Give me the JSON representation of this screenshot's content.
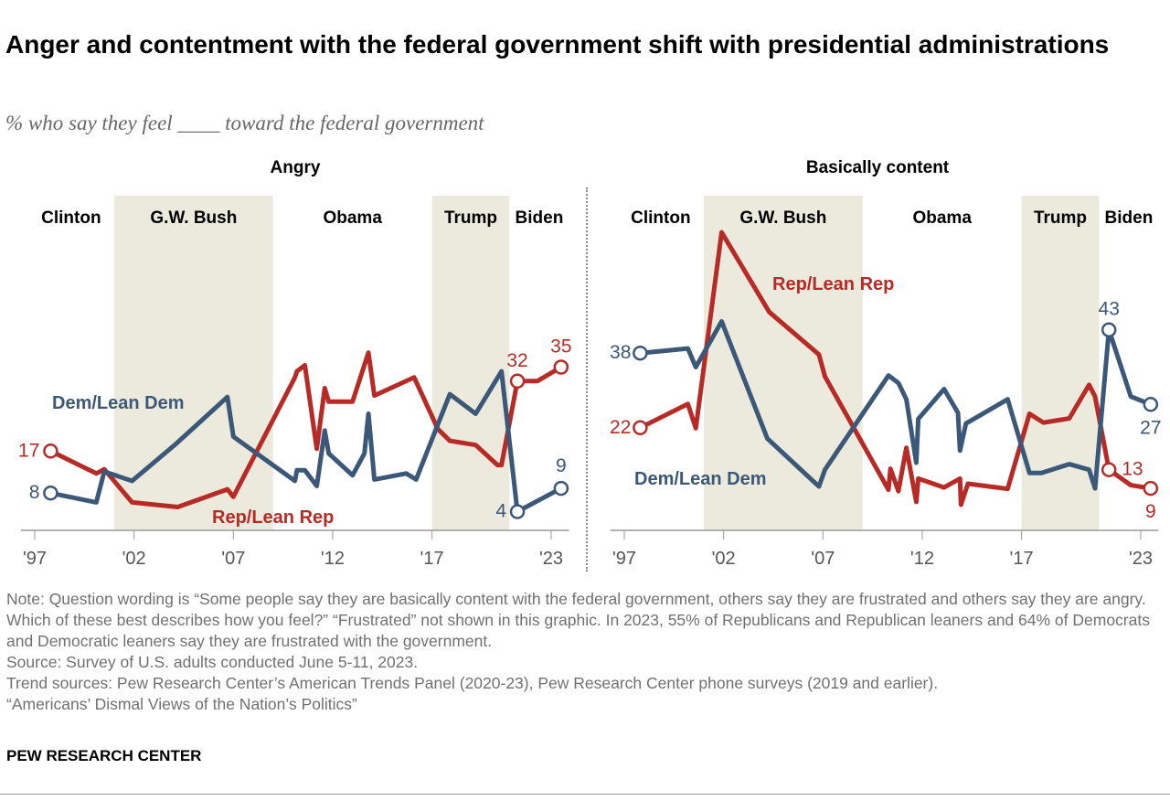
{
  "title": "Anger and contentment with the federal government shift with presidential administrations",
  "subtitle": "% who say they feel ____ toward the federal government",
  "colors": {
    "rep": "#b82a25",
    "dem": "#3c5878",
    "band": "#ebeadd",
    "axis": "#999999"
  },
  "chart_data": [
    {
      "type": "line",
      "title": "Angry",
      "x_ticks": [
        "'97",
        "'02",
        "'07",
        "'12",
        "'17",
        "'23"
      ],
      "x_tick_years": [
        1997,
        2002,
        2007,
        2012,
        2017,
        2023
      ],
      "xlim": [
        1996.3,
        2023.9
      ],
      "ylim": [
        0,
        40
      ],
      "grid": false,
      "eras": [
        {
          "label": "Clinton",
          "start": 1996.3,
          "end": 2001,
          "shaded": false
        },
        {
          "label": "G.W. Bush",
          "start": 2001,
          "end": 2009,
          "shaded": true
        },
        {
          "label": "Obama",
          "start": 2009,
          "end": 2017,
          "shaded": false
        },
        {
          "label": "Trump",
          "start": 2017,
          "end": 2020.9,
          "shaded": true
        },
        {
          "label": "Biden",
          "start": 2020.9,
          "end": 2023.9,
          "shaded": false
        }
      ],
      "series": [
        {
          "name": "Rep/Lean Rep",
          "color": "#b82a25",
          "x": [
            1997.8,
            2000.1,
            2000.5,
            2001.9,
            2004.2,
            2006.7,
            2007.0,
            2010.1,
            2010.2,
            2010.6,
            2011.2,
            2011.6,
            2011.8,
            2013.0,
            2013.8,
            2014.1,
            2016.1,
            2017.3,
            2017.9,
            2019.2,
            2020.3,
            2020.5,
            2021.3,
            2022.3,
            2023.5
          ],
          "y": [
            17,
            12.2,
            13.1,
            6,
            5,
            8.8,
            7.2,
            32.8,
            34.1,
            35.4,
            17.5,
            30.5,
            27.6,
            27.6,
            38.1,
            28.9,
            32.8,
            21.7,
            19.2,
            18.3,
            14,
            14,
            32,
            32,
            35
          ],
          "labels": [
            {
              "index": 0,
              "text": "17"
            },
            {
              "index": 22,
              "text": "32"
            },
            {
              "index": 24,
              "text": "35"
            }
          ]
        },
        {
          "name": "Dem/Lean Dem",
          "color": "#3c5878",
          "x": [
            1997.8,
            2000.1,
            2000.5,
            2001.9,
            2004.1,
            2006.7,
            2007.0,
            2010.1,
            2010.2,
            2010.6,
            2011.2,
            2011.6,
            2011.8,
            2013.0,
            2013.6,
            2013.8,
            2014.1,
            2015.7,
            2016.2,
            2017.9,
            2019.2,
            2020.5,
            2021.3,
            2023.5
          ],
          "y": [
            8,
            6,
            12.6,
            10.6,
            18.5,
            28.6,
            20.1,
            10.6,
            12.9,
            12.9,
            9.5,
            21.4,
            16.5,
            11.8,
            16.5,
            25,
            10.9,
            12.2,
            10.9,
            29.2,
            25,
            34.1,
            4,
            9
          ],
          "labels": [
            {
              "index": 0,
              "text": "8"
            },
            {
              "index": 22,
              "text": "4"
            },
            {
              "index": 23,
              "text": "9"
            }
          ]
        }
      ]
    },
    {
      "type": "line",
      "title": "Basically content",
      "x_ticks": [
        "'97",
        "'02",
        "'07",
        "'12",
        "'17",
        "'23"
      ],
      "x_tick_years": [
        1997,
        2002,
        2007,
        2012,
        2017,
        2023
      ],
      "xlim": [
        1996.3,
        2023.9
      ],
      "ylim": [
        0,
        65
      ],
      "grid": false,
      "eras": [
        {
          "label": "Clinton",
          "start": 1996.3,
          "end": 2001,
          "shaded": false
        },
        {
          "label": "G.W. Bush",
          "start": 2001,
          "end": 2009,
          "shaded": true
        },
        {
          "label": "Obama",
          "start": 2009,
          "end": 2017,
          "shaded": false
        },
        {
          "label": "Trump",
          "start": 2017,
          "end": 2020.9,
          "shaded": true
        },
        {
          "label": "Biden",
          "start": 2020.9,
          "end": 2023.9,
          "shaded": false
        }
      ],
      "series": [
        {
          "name": "Rep/Lean Rep",
          "color": "#b82a25",
          "x": [
            1997.8,
            2000.2,
            2000.6,
            2001.9,
            2004.3,
            2006.8,
            2007.1,
            2010.3,
            2010.4,
            2010.8,
            2011.2,
            2011.7,
            2011.8,
            2013.1,
            2013.9,
            2013.95,
            2014.3,
            2016.3,
            2017.4,
            2018.1,
            2019.4,
            2020.4,
            2020.7,
            2021.4,
            2022.5,
            2023.5
          ],
          "y": [
            22,
            27.1,
            21.9,
            63.9,
            46.8,
            37.7,
            33,
            8.7,
            13.2,
            8.4,
            17.7,
            6.1,
            11.1,
            9.2,
            11.1,
            5.5,
            10,
            8.9,
            25,
            23.1,
            24,
            31.2,
            28.7,
            13,
            9.7,
            9
          ],
          "labels": [
            {
              "index": 0,
              "text": "22"
            },
            {
              "index": 23,
              "text": "13"
            },
            {
              "index": 25,
              "text": "9"
            }
          ]
        },
        {
          "name": "Dem/Lean Dem",
          "color": "#3c5878",
          "x": [
            1997.8,
            2000.2,
            2000.6,
            2001.9,
            2004.2,
            2006.8,
            2007.1,
            2010.3,
            2010.8,
            2011.2,
            2011.7,
            2011.8,
            2013.1,
            2013.8,
            2013.9,
            2014.2,
            2016.3,
            2017.4,
            2018.0,
            2019.4,
            2020.4,
            2020.7,
            2021.4,
            2022.5,
            2023.5
          ],
          "y": [
            38,
            39,
            35,
            44.8,
            19.7,
            9.4,
            13,
            33.2,
            31.6,
            28.1,
            14.5,
            23.9,
            30.3,
            25.2,
            17.1,
            22.9,
            28.1,
            12.3,
            12.3,
            14.2,
            13,
            9,
            43,
            28.7,
            27
          ],
          "labels": [
            {
              "index": 0,
              "text": "38"
            },
            {
              "index": 22,
              "text": "43"
            },
            {
              "index": 24,
              "text": "27"
            }
          ]
        }
      ]
    }
  ],
  "notes": [
    "Note: Question wording is “Some people say they are basically content with the federal government, others say they are frustrated and others say they are angry. Which of these best describes how you feel?” “Frustrated” not shown in this graphic. In 2023, 55% of Republicans and Republican leaners and 64% of Democrats and Democratic leaners say they are frustrated with the government.",
    "Source: Survey of U.S. adults conducted June 5-11, 2023.",
    "Trend sources: Pew Research Center’s American Trends Panel (2020-23), Pew Research Center phone surveys (2019 and earlier).",
    "“Americans’ Dismal Views of the Nation’s Politics”"
  ],
  "brand": "PEW RESEARCH CENTER"
}
